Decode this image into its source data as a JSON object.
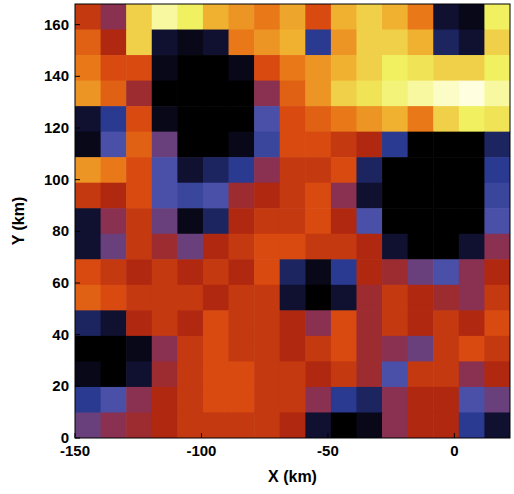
{
  "chart_data": {
    "type": "heatmap",
    "x_label": "X (km)",
    "y_label": "Y (km)",
    "xlim": [
      -150,
      22
    ],
    "ylim": [
      0,
      168
    ],
    "xticks": [
      -150,
      -100,
      -50,
      0
    ],
    "yticks": [
      0,
      20,
      40,
      60,
      80,
      100,
      120,
      140,
      160
    ],
    "zlim": [
      0,
      100
    ],
    "tick_labels": true,
    "cells": [
      [
        55,
        40,
        85,
        95,
        90,
        80,
        75,
        70,
        78,
        60,
        80,
        85,
        80,
        70,
        10,
        5,
        90
      ],
      [
        65,
        50,
        85,
        10,
        5,
        10,
        70,
        75,
        80,
        20,
        75,
        85,
        85,
        80,
        15,
        10,
        85
      ],
      [
        70,
        60,
        60,
        5,
        0,
        0,
        5,
        60,
        70,
        75,
        80,
        85,
        90,
        88,
        85,
        85,
        90
      ],
      [
        75,
        65,
        45,
        0,
        0,
        0,
        0,
        40,
        65,
        75,
        85,
        88,
        92,
        95,
        98,
        100,
        95
      ],
      [
        10,
        20,
        60,
        5,
        0,
        0,
        0,
        30,
        60,
        65,
        70,
        75,
        80,
        70,
        85,
        90,
        88
      ],
      [
        5,
        30,
        65,
        35,
        0,
        0,
        5,
        25,
        60,
        60,
        55,
        50,
        20,
        0,
        0,
        0,
        15
      ],
      [
        75,
        70,
        60,
        30,
        10,
        15,
        20,
        40,
        55,
        55,
        60,
        15,
        0,
        0,
        0,
        0,
        20
      ],
      [
        55,
        50,
        60,
        30,
        25,
        30,
        45,
        50,
        55,
        60,
        40,
        10,
        0,
        0,
        0,
        0,
        25
      ],
      [
        10,
        40,
        55,
        35,
        5,
        15,
        50,
        55,
        55,
        60,
        50,
        30,
        0,
        0,
        0,
        0,
        30
      ],
      [
        10,
        35,
        55,
        45,
        35,
        50,
        55,
        60,
        60,
        55,
        55,
        50,
        10,
        0,
        0,
        10,
        40
      ],
      [
        60,
        55,
        50,
        55,
        50,
        55,
        50,
        60,
        15,
        5,
        20,
        50,
        45,
        35,
        30,
        40,
        50
      ],
      [
        65,
        60,
        55,
        55,
        55,
        50,
        55,
        55,
        10,
        0,
        10,
        45,
        55,
        50,
        45,
        40,
        55
      ],
      [
        15,
        10,
        50,
        55,
        50,
        60,
        55,
        55,
        50,
        40,
        60,
        45,
        55,
        50,
        55,
        50,
        60
      ],
      [
        0,
        0,
        5,
        40,
        55,
        60,
        55,
        55,
        50,
        55,
        60,
        45,
        40,
        35,
        55,
        60,
        55
      ],
      [
        5,
        0,
        10,
        45,
        55,
        60,
        60,
        55,
        55,
        50,
        55,
        45,
        30,
        55,
        55,
        40,
        50
      ],
      [
        20,
        30,
        40,
        50,
        55,
        60,
        60,
        55,
        55,
        40,
        20,
        15,
        40,
        50,
        50,
        30,
        35
      ],
      [
        35,
        40,
        45,
        50,
        55,
        55,
        55,
        55,
        50,
        10,
        0,
        5,
        40,
        50,
        50,
        20,
        10
      ]
    ]
  }
}
